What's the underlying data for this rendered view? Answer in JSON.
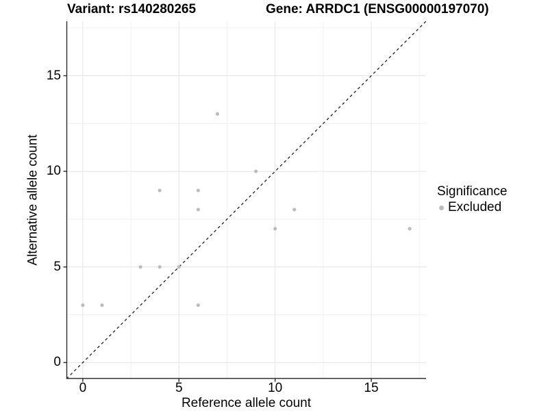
{
  "titles": {
    "variant": "Variant: rs140280265",
    "gene": "Gene: ARRDC1 (ENSG00000197070)"
  },
  "legend": {
    "title": "Significance",
    "items": [
      {
        "label": "Excluded",
        "color": "#bcbcbc"
      }
    ]
  },
  "chart_data": {
    "type": "scatter",
    "title": "Variant: rs140280265  /  Gene: ARRDC1 (ENSG00000197070)",
    "xlabel": "Reference allele count",
    "ylabel": "Alternative allele count",
    "xlim": [
      -0.85,
      17.85
    ],
    "ylim": [
      -0.85,
      17.85
    ],
    "x_ticks": [
      0,
      5,
      10,
      15
    ],
    "y_ticks": [
      0,
      5,
      10,
      15
    ],
    "x_minor_ticks": [
      2.5,
      7.5,
      12.5,
      17.5
    ],
    "y_minor_ticks": [
      2.5,
      7.5,
      12.5,
      17.5
    ],
    "grid": {
      "major_color": "#e4e4e4",
      "minor_color": "#f1f1f1",
      "background": "#ffffff"
    },
    "axis_color": "#2b2b2b",
    "legend_position": "right",
    "series": [
      {
        "name": "Excluded",
        "color": "#bcbcbc",
        "marker_radius": 2.6,
        "points": [
          [
            0,
            3
          ],
          [
            1,
            3
          ],
          [
            3,
            5
          ],
          [
            4,
            5
          ],
          [
            4,
            9
          ],
          [
            5,
            5
          ],
          [
            6,
            3
          ],
          [
            6,
            8
          ],
          [
            6,
            9
          ],
          [
            7,
            13
          ],
          [
            9,
            10
          ],
          [
            10,
            7
          ],
          [
            11,
            8
          ],
          [
            17,
            7
          ]
        ]
      }
    ],
    "reference_line": {
      "type": "identity y=x",
      "style": "dashed",
      "color": "#1c1c1c"
    }
  }
}
